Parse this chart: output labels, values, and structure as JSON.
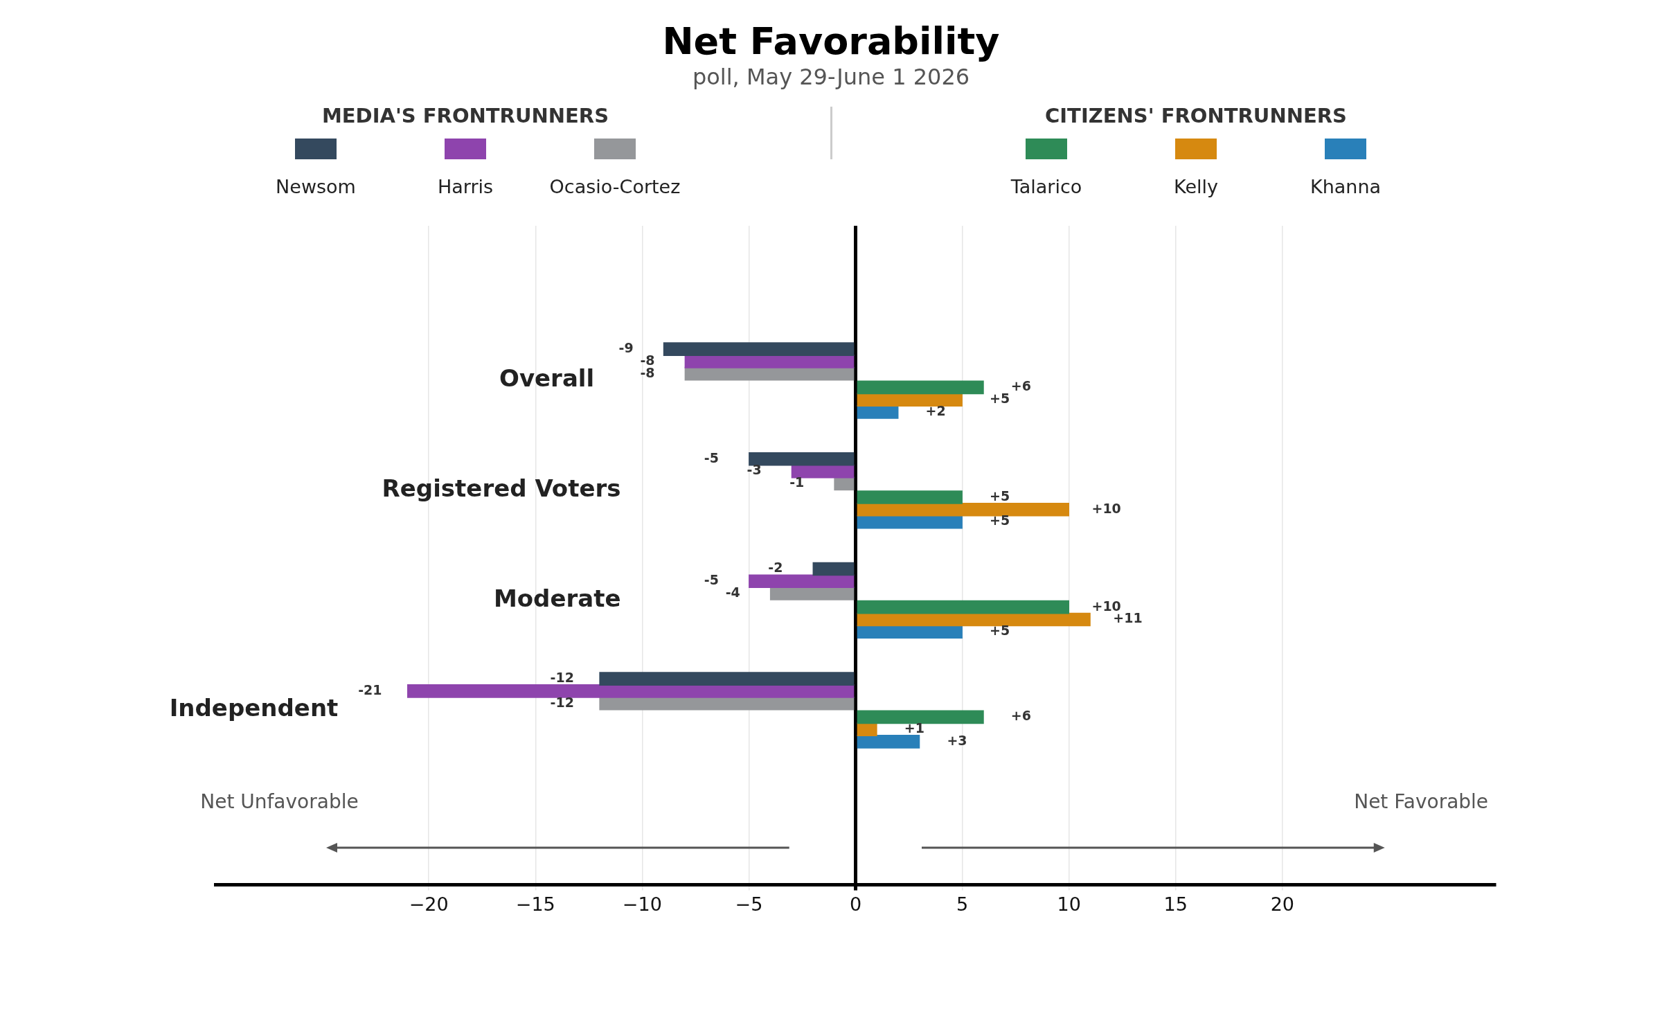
{
  "chart_data": {
    "type": "bar",
    "orientation": "horizontal",
    "title": "Net Favorability",
    "subtitle": "poll, May 29-June 1 2026",
    "categories": [
      "Overall",
      "Registered Voters",
      "Moderate",
      "Independent"
    ],
    "series": [
      {
        "name": "Newsom",
        "color": "#34495e",
        "values": [
          -9,
          -5,
          -2,
          -12
        ],
        "value_labels": [
          "-9",
          "-5",
          "-2",
          "-12"
        ]
      },
      {
        "name": "Harris",
        "color": "#8e44ad",
        "values": [
          -8,
          -3,
          -5,
          -21
        ],
        "value_labels": [
          "-8",
          "-3",
          "-5",
          "-21"
        ]
      },
      {
        "name": "Ocasio-Cortez",
        "color": "#95979a",
        "values": [
          -8,
          -1,
          -4,
          -12
        ],
        "value_labels": [
          "-8",
          "-1",
          "-4",
          "-12"
        ]
      },
      {
        "name": "Talarico",
        "color": "#2e8b57",
        "values": [
          6,
          5,
          10,
          6
        ],
        "value_labels": [
          "+6",
          "+5",
          "+10",
          "+6"
        ]
      },
      {
        "name": "Kelly",
        "color": "#d68910",
        "values": [
          5,
          10,
          11,
          1
        ],
        "value_labels": [
          "+5",
          "+10",
          "+11",
          "+1"
        ]
      },
      {
        "name": "Khanna",
        "color": "#2980b9",
        "values": [
          2,
          5,
          5,
          3
        ],
        "value_labels": [
          "+2",
          "+5",
          "+5",
          "+3"
        ]
      }
    ],
    "xlim": [
      -30,
      30
    ],
    "xticks": [
      -20,
      -15,
      -10,
      -5,
      0,
      5,
      10,
      15,
      20
    ],
    "grid": "x",
    "legend": "top",
    "annotations": [
      "MEDIA'S FRONTRUNNERS",
      "CITIZENS' FRONTRUNNERS",
      "Net Unfavorable",
      "Net Favorable"
    ]
  }
}
